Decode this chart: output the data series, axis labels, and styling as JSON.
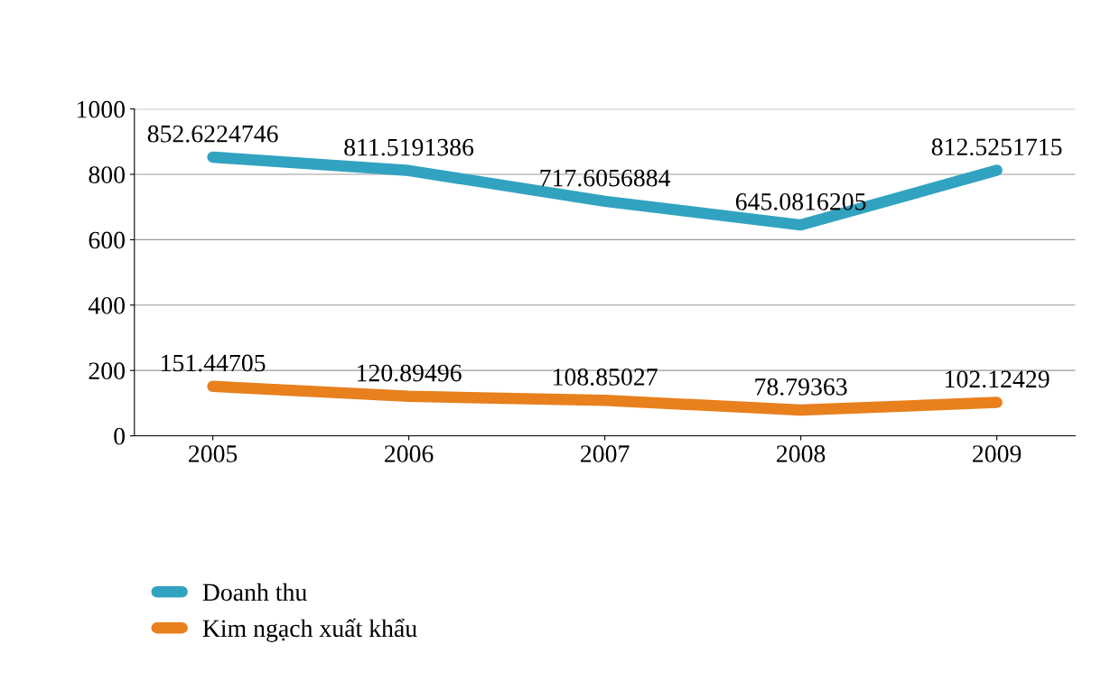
{
  "chart_data": {
    "type": "line",
    "categories": [
      "2005",
      "2006",
      "2007",
      "2008",
      "2009"
    ],
    "series": [
      {
        "name": "Doanh thu",
        "color": "#31a3c0",
        "values": [
          852.6224746,
          811.5191386,
          717.6056884,
          645.0816205,
          812.5251715
        ]
      },
      {
        "name": "Kim ngạch xuất khẩu",
        "color": "#e8801e",
        "values": [
          151.44705,
          120.89496,
          108.85027,
          78.79363,
          102.12429
        ]
      }
    ],
    "ylim": [
      0,
      1000
    ],
    "yticks": [
      0,
      200,
      400,
      600,
      800,
      1000
    ],
    "grid": "y",
    "legend": "bottom left",
    "data_labels": true,
    "line_style": "solid"
  }
}
